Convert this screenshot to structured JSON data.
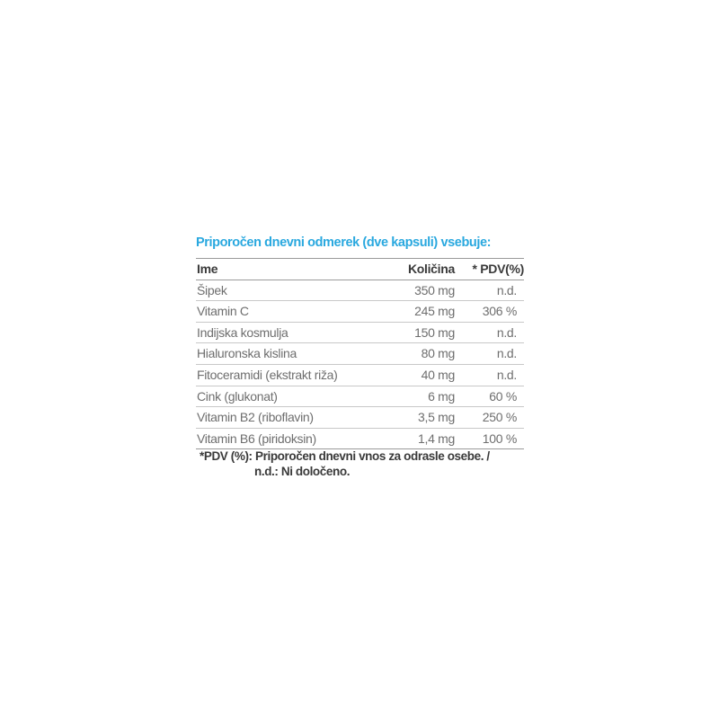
{
  "title": "Priporočen dnevni odmerek (dve kapsuli) vsebuje:",
  "headers": {
    "name": "Ime",
    "amount": "Količina",
    "pdv": "* PDV(%)"
  },
  "rows": [
    {
      "name": "Šipek",
      "amount": "350 mg",
      "pdv": "n.d."
    },
    {
      "name": "Vitamin C",
      "amount": "245 mg",
      "pdv": "306 %"
    },
    {
      "name": "Indijska kosmulja",
      "amount": "150 mg",
      "pdv": "n.d."
    },
    {
      "name": "Hialuronska kislina",
      "amount": "80 mg",
      "pdv": "n.d."
    },
    {
      "name": "Fitoceramidi (ekstrakt riža)",
      "amount": "40 mg",
      "pdv": "n.d."
    },
    {
      "name": "Cink (glukonat)",
      "amount": "6 mg",
      "pdv": "60 %"
    },
    {
      "name": "Vitamin B2 (riboflavin)",
      "amount": "3,5 mg",
      "pdv": "250 %"
    },
    {
      "name": "Vitamin B6 (piridoksin)",
      "amount": "1,4 mg",
      "pdv": "100 %"
    }
  ],
  "footnote": {
    "line1": "*PDV (%): Priporočen dnevni vnos za odrasle osebe. /",
    "line2": "n.d.: Ni določeno."
  },
  "colors": {
    "title": "#29a8df",
    "text": "#6e6e6e",
    "header": "#3a3a3a"
  }
}
